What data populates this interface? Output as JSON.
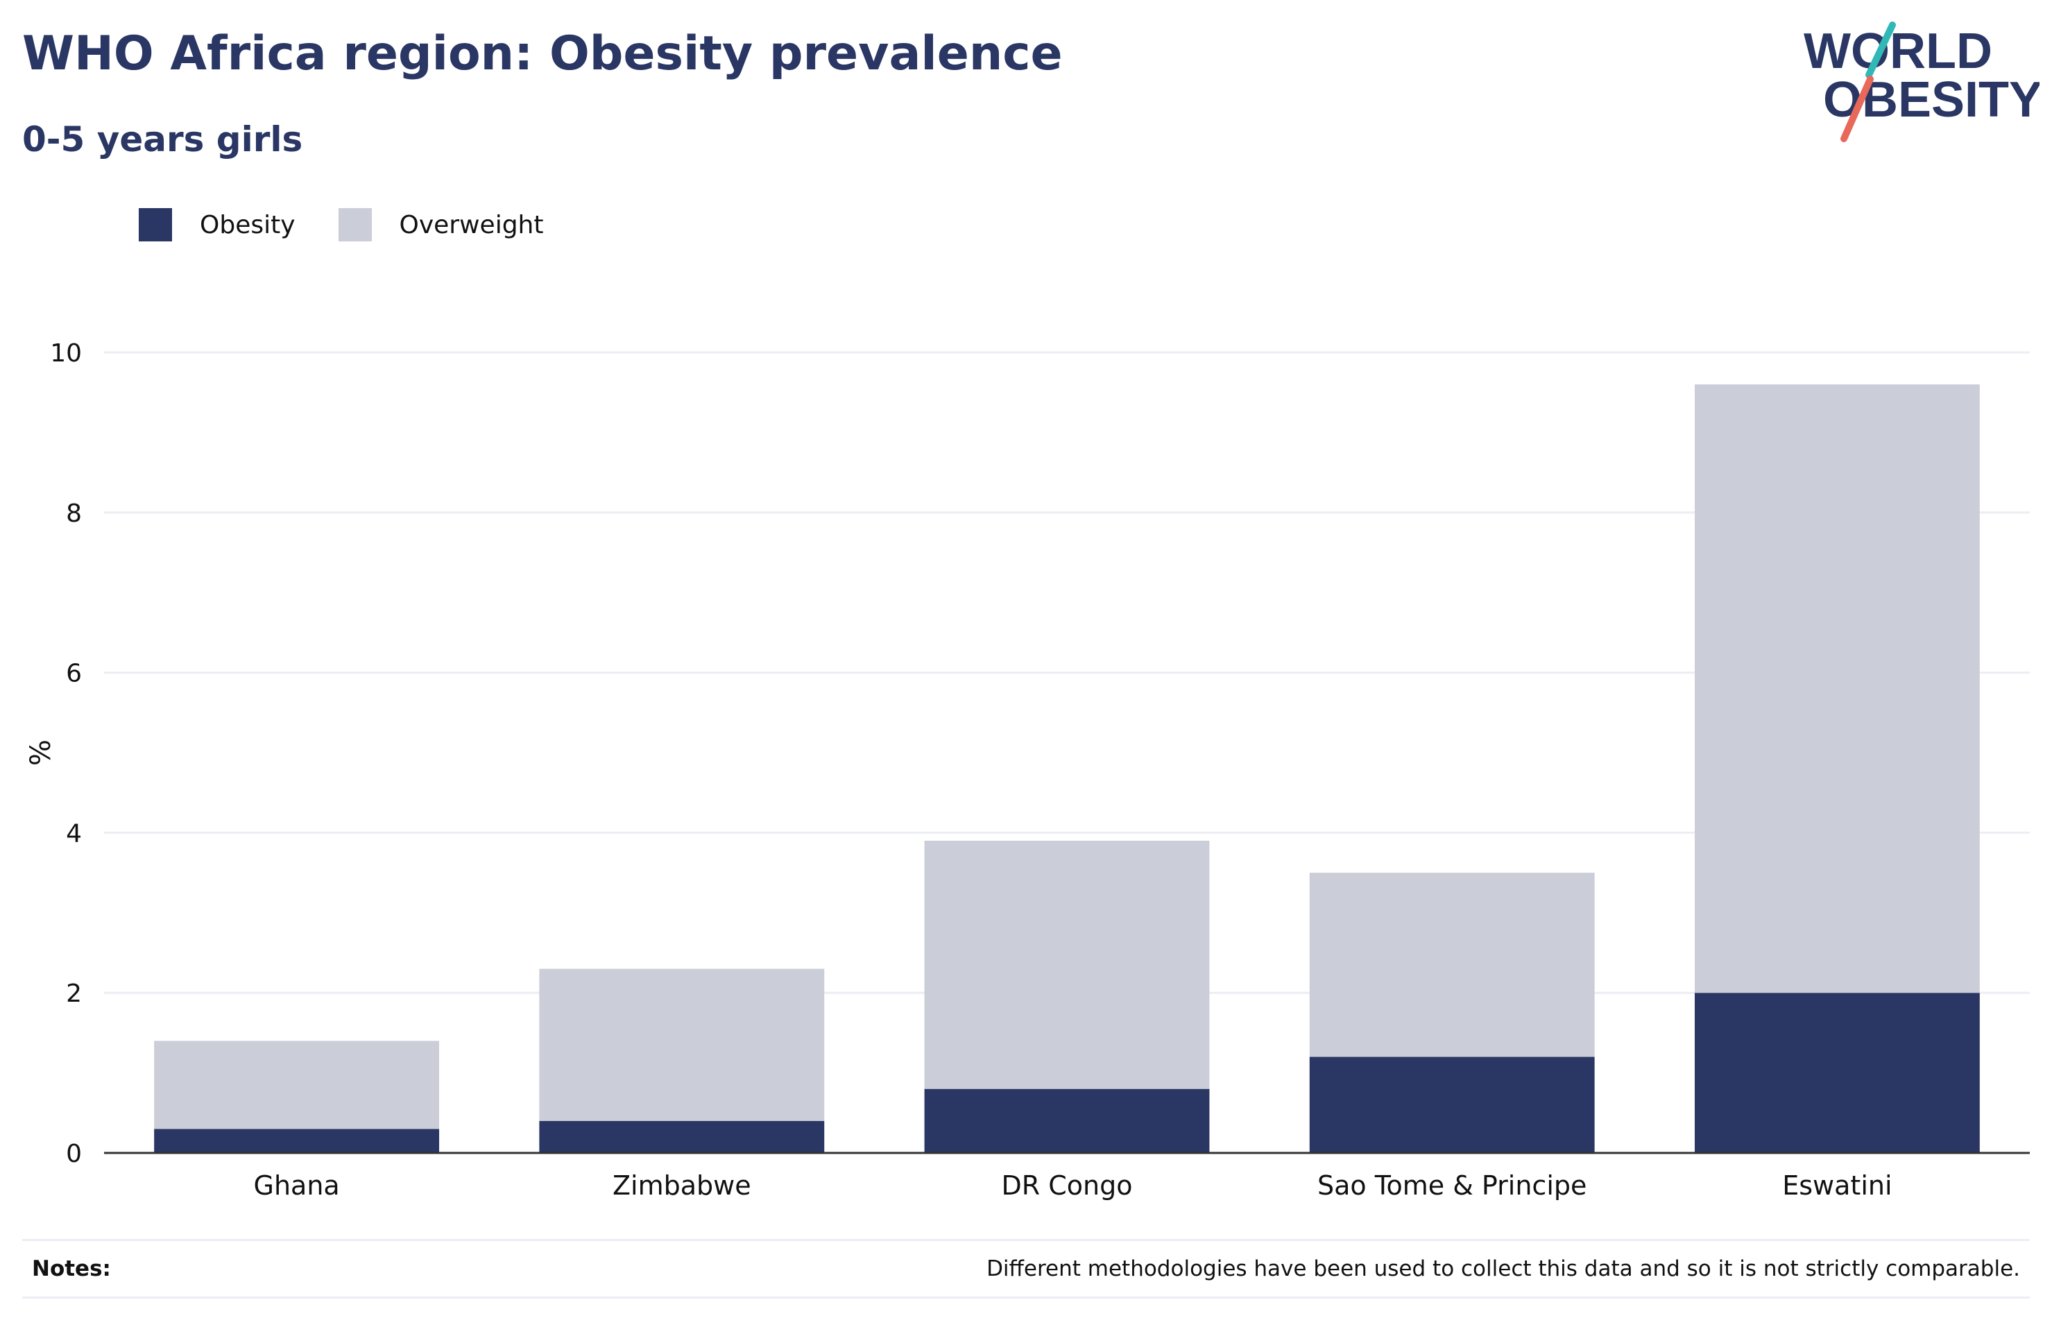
{
  "header": {
    "title": "WHO Africa region: Obesity prevalence",
    "subtitle": "0-5 years girls"
  },
  "logo": {
    "line1": "WORLD",
    "line2": "OBESITY",
    "slash_top_color": "#2fb8b5",
    "slash_bottom_color": "#e8685a"
  },
  "colors": {
    "obesity": "#2a3663",
    "overweight": "#cbcdd8",
    "title": "#2a3663",
    "gridline": "#eceef4",
    "axis": "#333333"
  },
  "chart_data": {
    "type": "bar",
    "stacked": true,
    "title": "WHO Africa region: Obesity prevalence",
    "subtitle": "0-5 years girls",
    "xlabel": "",
    "ylabel": "%",
    "categories": [
      "Ghana",
      "Zimbabwe",
      "DR Congo",
      "Sao Tome & Principe",
      "Eswatini"
    ],
    "series": [
      {
        "name": "Obesity",
        "values": [
          0.3,
          0.4,
          0.8,
          1.2,
          2.0
        ]
      },
      {
        "name": "Overweight",
        "values": [
          1.1,
          1.9,
          3.1,
          2.3,
          7.6
        ]
      }
    ],
    "totals": [
      1.4,
      2.3,
      3.9,
      3.5,
      9.6
    ],
    "ylim": [
      0,
      10
    ],
    "yticks": [
      0,
      2,
      4,
      6,
      8,
      10
    ],
    "grid": true,
    "legend_position": "top-left"
  },
  "notes": {
    "label": "Notes:",
    "text": "Different methodologies have been used to collect this data and so it is not strictly comparable."
  }
}
